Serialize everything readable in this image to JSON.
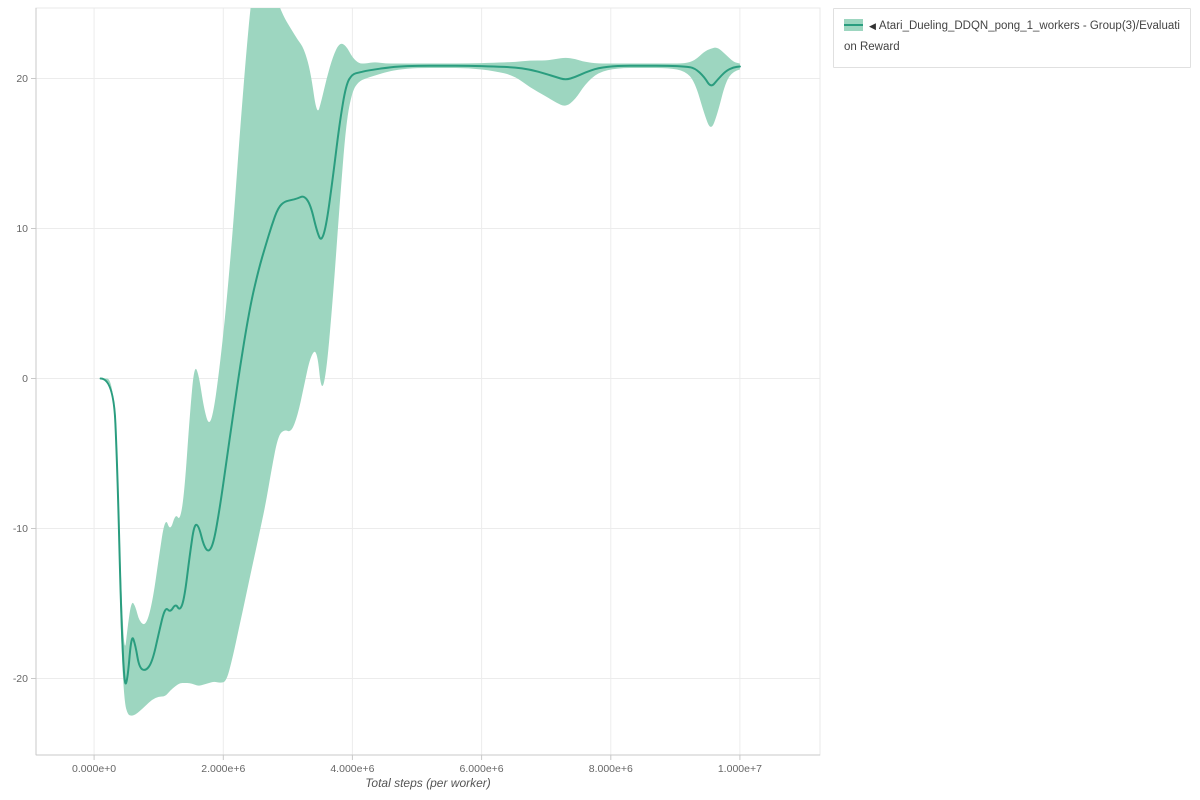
{
  "figure": {
    "background": "#ffffff",
    "grid_color": "#ececec",
    "frame_color": "#e8e8e8",
    "axis_color": "#c8c8c8",
    "tick_label_color": "#666666",
    "title_color": "#555555"
  },
  "chart_data": {
    "type": "line",
    "title": "",
    "xlabel": "Total steps (per worker)",
    "ylabel": "",
    "grid": true,
    "xlim": [
      -900000,
      11240000
    ],
    "ylim": [
      -25.1,
      24.7
    ],
    "x_ticks": [
      {
        "value": 0,
        "label": "0.000e+0"
      },
      {
        "value": 2000000,
        "label": "2.000e+6"
      },
      {
        "value": 4000000,
        "label": "4.000e+6"
      },
      {
        "value": 6000000,
        "label": "6.000e+6"
      },
      {
        "value": 8000000,
        "label": "8.000e+6"
      },
      {
        "value": 10000000,
        "label": "1.000e+7"
      }
    ],
    "y_ticks": [
      {
        "value": -20,
        "label": "-20"
      },
      {
        "value": -10,
        "label": "-10"
      },
      {
        "value": 0,
        "label": "0"
      },
      {
        "value": 10,
        "label": "10"
      },
      {
        "value": 20,
        "label": "20"
      }
    ],
    "legend": {
      "position": "top_right",
      "entries": [
        {
          "marker": "◀",
          "label": "Atari_Dueling_DDQN_pong_1_workers - Group(3)/Evaluation Reward"
        }
      ]
    },
    "series": [
      {
        "name": "Atari_Dueling_DDQN_pong_1_workers - Group(3)/Evaluation Reward",
        "color": "#2a9d7f",
        "band_color": "#9dd6c0",
        "x": [
          100000,
          300000,
          360000,
          420000,
          470000,
          520000,
          580000,
          640000,
          700000,
          800000,
          900000,
          1000000,
          1100000,
          1180000,
          1260000,
          1330000,
          1400000,
          1480000,
          1550000,
          1620000,
          1700000,
          1780000,
          1860000,
          1950000,
          2050000,
          2150000,
          2250000,
          2350000,
          2450000,
          2550000,
          2650000,
          2750000,
          2850000,
          2950000,
          3050000,
          3150000,
          3250000,
          3350000,
          3450000,
          3520000,
          3600000,
          3700000,
          3800000,
          3900000,
          4000000,
          4100000,
          4200000,
          4350000,
          4500000,
          4700000,
          5000000,
          5400000,
          5800000,
          6200000,
          6500000,
          6750000,
          7000000,
          7150000,
          7300000,
          7450000,
          7600000,
          7800000,
          8100000,
          8500000,
          8900000,
          9150000,
          9300000,
          9450000,
          9550000,
          9650000,
          9780000,
          9900000,
          10000000
        ],
        "mean": [
          0,
          0,
          -6,
          -16,
          -20.6,
          -20.0,
          -17.0,
          -17.8,
          -19.3,
          -19.5,
          -18.9,
          -17.0,
          -15.2,
          -15.6,
          -15.0,
          -15.5,
          -14.6,
          -11.8,
          -9.7,
          -9.8,
          -11.2,
          -11.6,
          -10.8,
          -8.5,
          -5.5,
          -2.5,
          0.5,
          3.2,
          5.5,
          7.3,
          8.8,
          10.2,
          11.4,
          11.8,
          11.9,
          12.0,
          12.2,
          11.6,
          9.8,
          9.1,
          10.3,
          13.5,
          17.0,
          19.6,
          20.3,
          20.4,
          20.5,
          20.6,
          20.7,
          20.8,
          20.85,
          20.85,
          20.85,
          20.8,
          20.75,
          20.6,
          20.3,
          20.1,
          19.9,
          20.1,
          20.4,
          20.7,
          20.85,
          20.85,
          20.85,
          20.8,
          20.7,
          20.1,
          19.4,
          19.9,
          20.5,
          20.75,
          20.8
        ],
        "lower": [
          0,
          0,
          -7,
          -18,
          -21.6,
          -22.4,
          -22.5,
          -22.4,
          -22.2,
          -21.8,
          -21.4,
          -21.2,
          -21.2,
          -20.8,
          -20.5,
          -20.3,
          -20.3,
          -20.3,
          -20.4,
          -20.5,
          -20.4,
          -20.3,
          -20.2,
          -20.3,
          -20.2,
          -18.5,
          -16.5,
          -14.5,
          -12.5,
          -10.5,
          -8.5,
          -6.0,
          -3.8,
          -3.4,
          -3.6,
          -2.5,
          -0.5,
          1.5,
          2.0,
          -1.0,
          0.5,
          5.5,
          11.5,
          17.0,
          19.2,
          19.8,
          20.0,
          20.2,
          20.4,
          20.6,
          20.7,
          20.7,
          20.7,
          20.5,
          20.2,
          19.4,
          18.8,
          18.4,
          18.1,
          18.6,
          19.6,
          20.4,
          20.7,
          20.7,
          20.7,
          20.5,
          19.8,
          17.6,
          16.5,
          17.6,
          19.8,
          20.5,
          20.6
        ],
        "upper": [
          0,
          0,
          -5,
          -14,
          -18.5,
          -16.5,
          -14.8,
          -15.2,
          -16.2,
          -16.5,
          -15.0,
          -12.0,
          -9.2,
          -10.2,
          -9.0,
          -9.5,
          -7.5,
          -2.5,
          0.9,
          0.3,
          -2.0,
          -3.2,
          -2.0,
          1.0,
          5.0,
          10.0,
          16.0,
          21.5,
          26.0,
          27.0,
          27.0,
          26.0,
          25.0,
          24.0,
          23.3,
          22.6,
          22.0,
          20.5,
          17.5,
          18.5,
          20.0,
          21.5,
          22.4,
          22.2,
          21.4,
          21.0,
          21.0,
          21.1,
          21.0,
          21.0,
          21.0,
          21.0,
          21.0,
          21.05,
          21.1,
          21.2,
          21.2,
          21.3,
          21.4,
          21.3,
          21.1,
          21.0,
          21.0,
          21.0,
          21.0,
          21.0,
          21.2,
          21.8,
          22.0,
          22.1,
          21.6,
          21.1,
          21.0
        ]
      }
    ]
  }
}
